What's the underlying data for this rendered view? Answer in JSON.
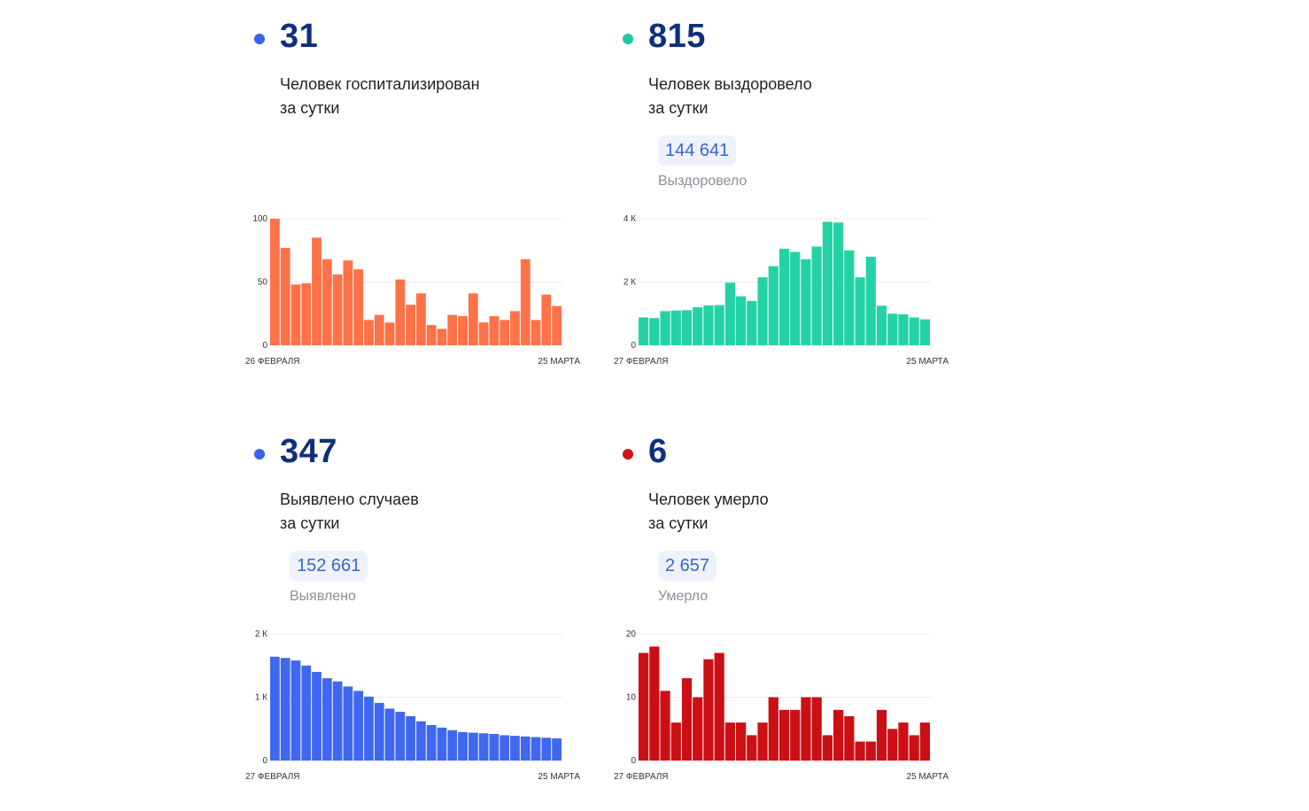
{
  "cards": [
    {
      "id": "hospitalized",
      "value": "31",
      "dot_color": "#3563e9",
      "desc_line1": "Человек госпитализирован",
      "desc_line2": "за сутки",
      "chart_data": {
        "type": "bar",
        "color": "#ff7147",
        "ylim": [
          0,
          100
        ],
        "yticks": [
          "0",
          "50",
          "100"
        ],
        "ytick_values": [
          0,
          50,
          100
        ],
        "x_start_label": "26 ФЕВРАЛЯ",
        "x_end_label": "25 МАРТА",
        "values": [
          100,
          77,
          48,
          49,
          85,
          68,
          56,
          67,
          60,
          20,
          24,
          18,
          52,
          32,
          41,
          16,
          13,
          24,
          23,
          41,
          18,
          23,
          20,
          27,
          68,
          20,
          40,
          31
        ]
      }
    },
    {
      "id": "recovered",
      "value": "815",
      "dot_color": "#1ec8a0",
      "desc_line1": "Человек выздоровело",
      "desc_line2": "за сутки",
      "total": "144 641",
      "total_label": "Выздоровело",
      "chart_data": {
        "type": "bar",
        "color": "#24d3a5",
        "ylim": [
          0,
          4000
        ],
        "yticks": [
          "0",
          "2 К",
          "4 К"
        ],
        "ytick_values": [
          0,
          2000,
          4000
        ],
        "x_start_label": "27 ФЕВРАЛЯ",
        "x_end_label": "25 МАРТА",
        "values": [
          880,
          860,
          1080,
          1100,
          1110,
          1200,
          1260,
          1270,
          1980,
          1550,
          1400,
          2150,
          2500,
          3050,
          2950,
          2720,
          3120,
          3900,
          3880,
          3000,
          2150,
          2800,
          1250,
          1000,
          980,
          880,
          820
        ]
      }
    },
    {
      "id": "cases",
      "value": "347",
      "dot_color": "#3563e9",
      "desc_line1": "Выявлено случаев",
      "desc_line2": "за сутки",
      "total": "152 661",
      "total_label": "Выявлено",
      "chart_data": {
        "type": "bar",
        "color": "#3f67f0",
        "ylim": [
          0,
          2000
        ],
        "yticks": [
          "0",
          "1 К",
          "2 К"
        ],
        "ytick_values": [
          0,
          1000,
          2000
        ],
        "x_start_label": "27 ФЕВРАЛЯ",
        "x_end_label": "25 МАРТА",
        "values": [
          1640,
          1620,
          1580,
          1500,
          1400,
          1300,
          1250,
          1170,
          1100,
          1010,
          910,
          820,
          770,
          700,
          620,
          560,
          520,
          480,
          450,
          440,
          430,
          420,
          400,
          390,
          380,
          370,
          360,
          350
        ]
      }
    },
    {
      "id": "deaths",
      "value": "6",
      "dot_color": "#d0121b",
      "desc_line1": "Человек умерло",
      "desc_line2": "за сутки",
      "total": "2 657",
      "total_label": "Умерло",
      "chart_data": {
        "type": "bar",
        "color": "#cc0f14",
        "ylim": [
          0,
          20
        ],
        "yticks": [
          "0",
          "10",
          "20"
        ],
        "ytick_values": [
          0,
          10,
          20
        ],
        "x_start_label": "27 ФЕВРАЛЯ",
        "x_end_label": "25 МАРТА",
        "values": [
          17,
          18,
          11,
          6,
          13,
          10,
          16,
          17,
          6,
          6,
          4,
          6,
          10,
          8,
          8,
          10,
          10,
          4,
          8,
          7,
          3,
          3,
          8,
          5,
          6,
          4,
          6
        ]
      }
    }
  ]
}
